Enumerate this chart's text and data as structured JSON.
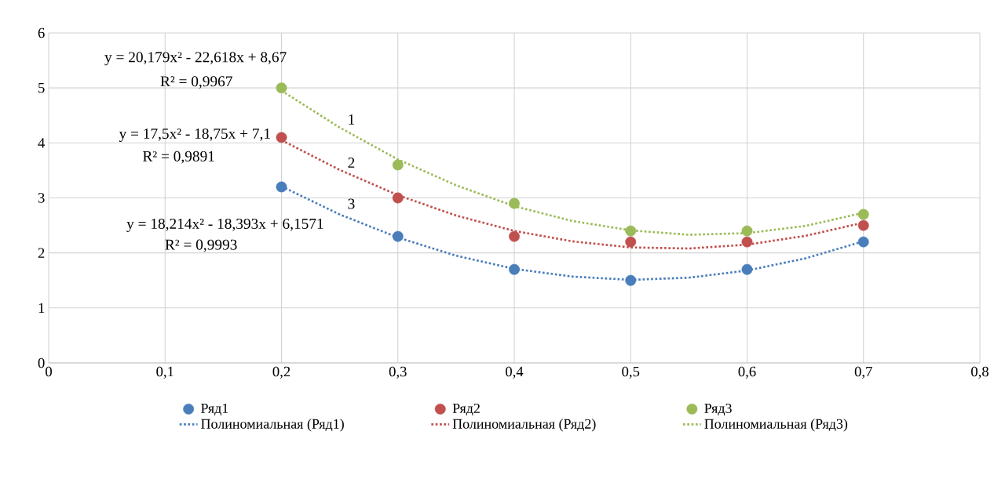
{
  "chart_data": {
    "type": "scatter",
    "xlim": [
      0,
      0.8
    ],
    "ylim": [
      0,
      6
    ],
    "xticks": [
      0,
      {
        "value": 0.1,
        "label": "0,1"
      },
      {
        "value": 0.2,
        "label": "0,2"
      },
      {
        "value": 0.3,
        "label": "0,3"
      },
      {
        "value": 0.4,
        "label": "0,4"
      },
      {
        "value": 0.5,
        "label": "0,5"
      },
      {
        "value": 0.6,
        "label": "0,6"
      },
      {
        "value": 0.7,
        "label": "0,7"
      },
      {
        "value": 0.8,
        "label": "0,8"
      }
    ],
    "yticks": [
      0,
      1,
      2,
      3,
      4,
      5,
      6
    ],
    "grid": true,
    "legend": "bottom",
    "series": [
      {
        "name": "Ряд1",
        "marker": "circle",
        "color": "#4a7ebb",
        "x": [
          0.2,
          0.3,
          0.4,
          0.5,
          0.6,
          0.7
        ],
        "values": [
          3.2,
          2.3,
          1.7,
          1.5,
          1.7,
          2.2
        ]
      },
      {
        "name": "Ряд2",
        "marker": "circle",
        "color": "#c0504d",
        "x": [
          0.2,
          0.3,
          0.4,
          0.5,
          0.6,
          0.7
        ],
        "values": [
          4.1,
          3.0,
          2.3,
          2.2,
          2.2,
          2.5
        ]
      },
      {
        "name": "Ряд3",
        "marker": "circle",
        "color": "#9bbb59",
        "x": [
          0.2,
          0.3,
          0.4,
          0.5,
          0.6,
          0.7
        ],
        "values": [
          5.0,
          3.6,
          2.9,
          2.4,
          2.4,
          2.7
        ]
      },
      {
        "name": "Полиномиальная (Ряд1)",
        "type": "line",
        "marker": "none",
        "line_style": "dotted",
        "color": "#4a7ebb",
        "x": [
          0.2,
          0.25,
          0.3,
          0.35,
          0.4,
          0.45,
          0.5,
          0.55,
          0.6,
          0.65,
          0.7
        ],
        "values": [
          3.21,
          2.7,
          2.28,
          1.95,
          1.71,
          1.57,
          1.51,
          1.55,
          1.68,
          1.9,
          2.21
        ]
      },
      {
        "name": "Полиномиальная (Ряд2)",
        "type": "line",
        "marker": "none",
        "line_style": "dotted",
        "color": "#c0504d",
        "x": [
          0.2,
          0.25,
          0.3,
          0.35,
          0.4,
          0.45,
          0.5,
          0.55,
          0.6,
          0.65,
          0.7
        ],
        "values": [
          4.05,
          3.51,
          3.05,
          2.68,
          2.4,
          2.21,
          2.1,
          2.08,
          2.15,
          2.31,
          2.55
        ]
      },
      {
        "name": "Полиномиальная (Ряд3)",
        "type": "line",
        "marker": "none",
        "line_style": "dotted",
        "color": "#9bbb59",
        "x": [
          0.2,
          0.25,
          0.3,
          0.35,
          0.4,
          0.45,
          0.5,
          0.55,
          0.6,
          0.65,
          0.7
        ],
        "values": [
          4.95,
          4.28,
          3.7,
          3.23,
          2.85,
          2.58,
          2.41,
          2.33,
          2.36,
          2.49,
          2.73
        ]
      }
    ],
    "annotations": [
      "y = 20,179x² - 22,618x + 8,67",
      "R² = 0,9967",
      "y = 17,5x² - 18,75x + 7,1",
      "R² = 0,9891",
      "y = 18,214x² - 18,393x + 6,1571",
      "R² = 0,9993",
      "1",
      "2",
      "3"
    ]
  }
}
